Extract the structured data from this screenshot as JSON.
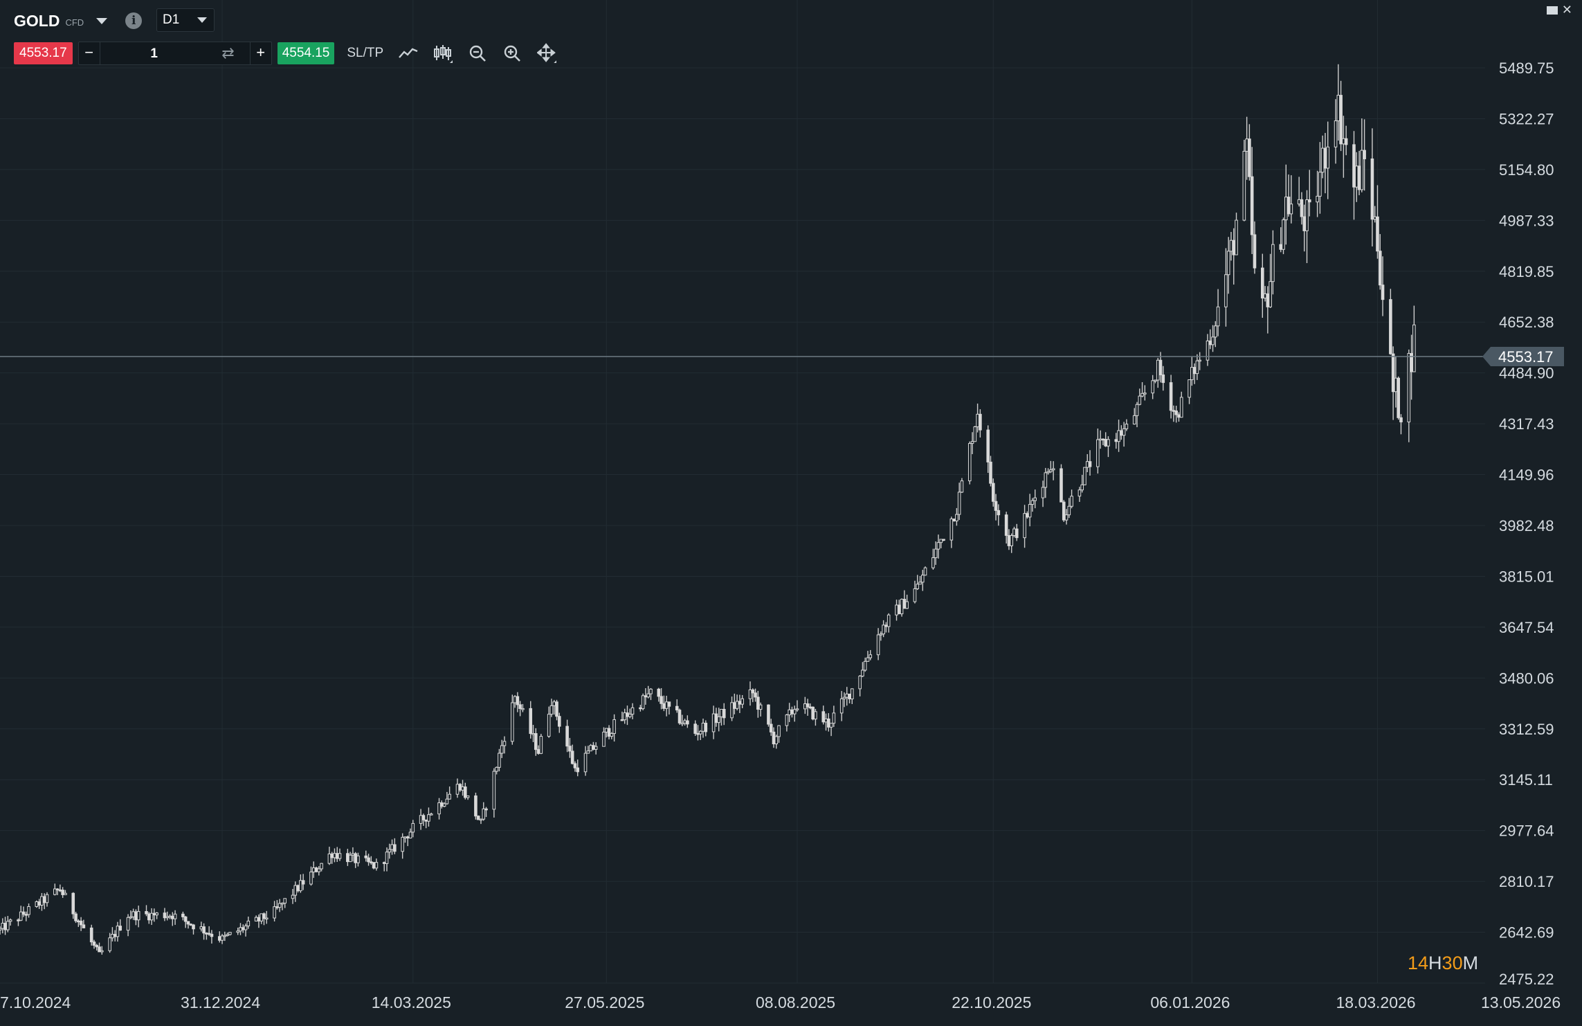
{
  "header": {
    "symbol": "GOLD",
    "symbol_tag": "CFD",
    "info_label": "i",
    "timeframe": "D1"
  },
  "trade": {
    "sell_price": "4553.17",
    "minus_label": "−",
    "quantity": "1",
    "swap_label": "⇄",
    "plus_label": "+",
    "buy_price": "4554.15",
    "sltp_label": "SL/TP"
  },
  "window": {
    "close_label": "✕"
  },
  "timer": {
    "hours": "14",
    "h_unit": "H",
    "minutes": "30",
    "m_unit": "M"
  },
  "colors": {
    "background": "#182026",
    "candle": "#d5d5d5",
    "sell": "#e6384a",
    "buy": "#19a35f",
    "timer_accent": "#f39c19",
    "price_marker": "#4a5863"
  },
  "chart_data": {
    "type": "candlestick",
    "symbol": "GOLD",
    "timeframe": "D1",
    "y_ticks": [
      "5489.75",
      "5322.27",
      "5154.80",
      "4987.33",
      "4819.85",
      "4652.38",
      "4484.90",
      "4317.43",
      "4149.96",
      "3982.48",
      "3815.01",
      "3647.54",
      "3480.06",
      "3312.59",
      "3145.11",
      "2977.64",
      "2810.17",
      "2642.69",
      "2475.22"
    ],
    "ylim": [
      2475.22,
      5489.75
    ],
    "x_ticks": [
      "7.10.2024",
      "31.12.2024",
      "14.03.2025",
      "27.05.2025",
      "08.08.2025",
      "22.10.2025",
      "06.01.2026",
      "18.03.2026",
      "13.05.2026"
    ],
    "current_price": 4553.17,
    "current_price_label": "4553.17",
    "grid": true,
    "trajectory": [
      [
        "2024-10-07",
        2650
      ],
      [
        "2024-10-30",
        2785
      ],
      [
        "2024-11-14",
        2565
      ],
      [
        "2024-11-25",
        2700
      ],
      [
        "2024-12-12",
        2700
      ],
      [
        "2024-12-31",
        2620
      ],
      [
        "2025-01-20",
        2710
      ],
      [
        "2025-02-11",
        2905
      ],
      [
        "2025-02-28",
        2860
      ],
      [
        "2025-03-14",
        2985
      ],
      [
        "2025-04-01",
        3130
      ],
      [
        "2025-04-09",
        3000
      ],
      [
        "2025-04-22",
        3420
      ],
      [
        "2025-05-01",
        3240
      ],
      [
        "2025-05-06",
        3410
      ],
      [
        "2025-05-15",
        3180
      ],
      [
        "2025-05-27",
        3300
      ],
      [
        "2025-06-13",
        3430
      ],
      [
        "2025-06-30",
        3300
      ],
      [
        "2025-07-22",
        3430
      ],
      [
        "2025-07-30",
        3280
      ],
      [
        "2025-08-08",
        3395
      ],
      [
        "2025-08-20",
        3330
      ],
      [
        "2025-08-29",
        3445
      ],
      [
        "2025-09-09",
        3640
      ],
      [
        "2025-09-23",
        3780
      ],
      [
        "2025-10-08",
        4040
      ],
      [
        "2025-10-16",
        4360
      ],
      [
        "2025-10-22",
        4080
      ],
      [
        "2025-10-28",
        3930
      ],
      [
        "2025-11-03",
        4000
      ],
      [
        "2025-11-13",
        4190
      ],
      [
        "2025-11-18",
        4020
      ],
      [
        "2025-12-01",
        4240
      ],
      [
        "2025-12-12",
        4300
      ],
      [
        "2025-12-24",
        4500
      ],
      [
        "2025-12-31",
        4340
      ],
      [
        "2026-01-06",
        4480
      ],
      [
        "2026-01-14",
        4620
      ],
      [
        "2026-01-21",
        4880
      ],
      [
        "2026-01-27",
        5200
      ],
      [
        "2026-01-30",
        4800
      ],
      [
        "2026-02-02",
        4680
      ],
      [
        "2026-02-11",
        5050
      ],
      [
        "2026-02-20",
        4980
      ],
      [
        "2026-02-26",
        5220
      ],
      [
        "2026-03-02",
        5390
      ],
      [
        "2026-03-09",
        5100
      ],
      [
        "2026-03-13",
        5180
      ],
      [
        "2026-03-18",
        4920
      ],
      [
        "2026-03-24",
        4420
      ],
      [
        "2026-03-27",
        4380
      ],
      [
        "2026-04-01",
        4600
      ]
    ]
  }
}
